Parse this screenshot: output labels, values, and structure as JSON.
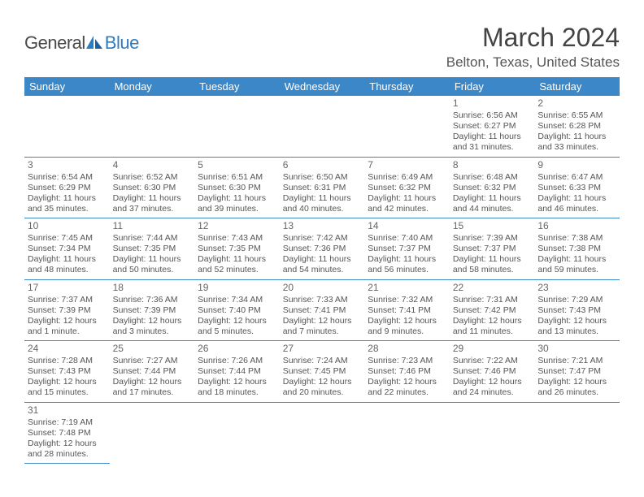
{
  "brand": {
    "name_a": "General",
    "name_b": "Blue"
  },
  "title": "March 2024",
  "location": "Belton, Texas, United States",
  "colors": {
    "header_bg": "#3b87c8",
    "header_fg": "#ffffff",
    "border": "#3b87c8",
    "text": "#555555",
    "title": "#444444",
    "logo_gray": "#4a4a4a",
    "logo_blue": "#2f7bbf",
    "page_bg": "#ffffff"
  },
  "fonts": {
    "body_size": 10.5,
    "daynum_size": 12,
    "header_cell_size": 13,
    "title_size": 32,
    "location_size": 17
  },
  "weekdays": [
    "Sunday",
    "Monday",
    "Tuesday",
    "Wednesday",
    "Thursday",
    "Friday",
    "Saturday"
  ],
  "layout": {
    "columns": 7,
    "rows": 6,
    "first_weekday_index": 5,
    "days_in_month": 31
  },
  "days": [
    {
      "n": 1,
      "sunrise": "6:56 AM",
      "sunset": "6:27 PM",
      "daylight": "11 hours and 31 minutes."
    },
    {
      "n": 2,
      "sunrise": "6:55 AM",
      "sunset": "6:28 PM",
      "daylight": "11 hours and 33 minutes."
    },
    {
      "n": 3,
      "sunrise": "6:54 AM",
      "sunset": "6:29 PM",
      "daylight": "11 hours and 35 minutes."
    },
    {
      "n": 4,
      "sunrise": "6:52 AM",
      "sunset": "6:30 PM",
      "daylight": "11 hours and 37 minutes."
    },
    {
      "n": 5,
      "sunrise": "6:51 AM",
      "sunset": "6:30 PM",
      "daylight": "11 hours and 39 minutes."
    },
    {
      "n": 6,
      "sunrise": "6:50 AM",
      "sunset": "6:31 PM",
      "daylight": "11 hours and 40 minutes."
    },
    {
      "n": 7,
      "sunrise": "6:49 AM",
      "sunset": "6:32 PM",
      "daylight": "11 hours and 42 minutes."
    },
    {
      "n": 8,
      "sunrise": "6:48 AM",
      "sunset": "6:32 PM",
      "daylight": "11 hours and 44 minutes."
    },
    {
      "n": 9,
      "sunrise": "6:47 AM",
      "sunset": "6:33 PM",
      "daylight": "11 hours and 46 minutes."
    },
    {
      "n": 10,
      "sunrise": "7:45 AM",
      "sunset": "7:34 PM",
      "daylight": "11 hours and 48 minutes."
    },
    {
      "n": 11,
      "sunrise": "7:44 AM",
      "sunset": "7:35 PM",
      "daylight": "11 hours and 50 minutes."
    },
    {
      "n": 12,
      "sunrise": "7:43 AM",
      "sunset": "7:35 PM",
      "daylight": "11 hours and 52 minutes."
    },
    {
      "n": 13,
      "sunrise": "7:42 AM",
      "sunset": "7:36 PM",
      "daylight": "11 hours and 54 minutes."
    },
    {
      "n": 14,
      "sunrise": "7:40 AM",
      "sunset": "7:37 PM",
      "daylight": "11 hours and 56 minutes."
    },
    {
      "n": 15,
      "sunrise": "7:39 AM",
      "sunset": "7:37 PM",
      "daylight": "11 hours and 58 minutes."
    },
    {
      "n": 16,
      "sunrise": "7:38 AM",
      "sunset": "7:38 PM",
      "daylight": "11 hours and 59 minutes."
    },
    {
      "n": 17,
      "sunrise": "7:37 AM",
      "sunset": "7:39 PM",
      "daylight": "12 hours and 1 minute."
    },
    {
      "n": 18,
      "sunrise": "7:36 AM",
      "sunset": "7:39 PM",
      "daylight": "12 hours and 3 minutes."
    },
    {
      "n": 19,
      "sunrise": "7:34 AM",
      "sunset": "7:40 PM",
      "daylight": "12 hours and 5 minutes."
    },
    {
      "n": 20,
      "sunrise": "7:33 AM",
      "sunset": "7:41 PM",
      "daylight": "12 hours and 7 minutes."
    },
    {
      "n": 21,
      "sunrise": "7:32 AM",
      "sunset": "7:41 PM",
      "daylight": "12 hours and 9 minutes."
    },
    {
      "n": 22,
      "sunrise": "7:31 AM",
      "sunset": "7:42 PM",
      "daylight": "12 hours and 11 minutes."
    },
    {
      "n": 23,
      "sunrise": "7:29 AM",
      "sunset": "7:43 PM",
      "daylight": "12 hours and 13 minutes."
    },
    {
      "n": 24,
      "sunrise": "7:28 AM",
      "sunset": "7:43 PM",
      "daylight": "12 hours and 15 minutes."
    },
    {
      "n": 25,
      "sunrise": "7:27 AM",
      "sunset": "7:44 PM",
      "daylight": "12 hours and 17 minutes."
    },
    {
      "n": 26,
      "sunrise": "7:26 AM",
      "sunset": "7:44 PM",
      "daylight": "12 hours and 18 minutes."
    },
    {
      "n": 27,
      "sunrise": "7:24 AM",
      "sunset": "7:45 PM",
      "daylight": "12 hours and 20 minutes."
    },
    {
      "n": 28,
      "sunrise": "7:23 AM",
      "sunset": "7:46 PM",
      "daylight": "12 hours and 22 minutes."
    },
    {
      "n": 29,
      "sunrise": "7:22 AM",
      "sunset": "7:46 PM",
      "daylight": "12 hours and 24 minutes."
    },
    {
      "n": 30,
      "sunrise": "7:21 AM",
      "sunset": "7:47 PM",
      "daylight": "12 hours and 26 minutes."
    },
    {
      "n": 31,
      "sunrise": "7:19 AM",
      "sunset": "7:48 PM",
      "daylight": "12 hours and 28 minutes."
    }
  ],
  "labels": {
    "sunrise": "Sunrise:",
    "sunset": "Sunset:",
    "daylight": "Daylight:"
  }
}
